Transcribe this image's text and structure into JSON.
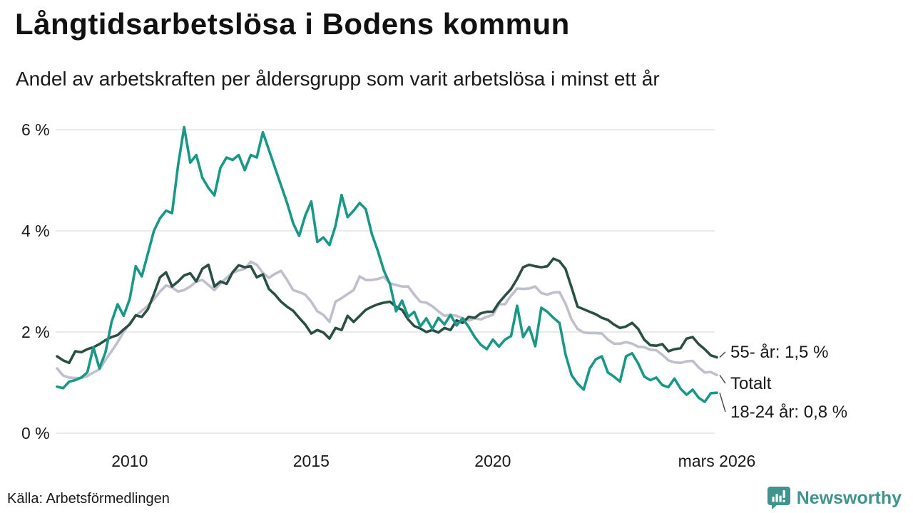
{
  "header": {
    "title": "Långtidsarbetslösa i Bodens kommun",
    "subtitle": "Andel av arbetskraften per åldersgrupp som varit arbetslösa i minst ett år"
  },
  "footer": {
    "source": "Källa: Arbetsförmedlingen",
    "brand": "Newsworthy"
  },
  "colors": {
    "accent_teal": "#1a9886",
    "dark_green": "#2c4f44",
    "total_gray": "#bfc0cb",
    "gridline": "#e4e4e4",
    "leader": "#444444",
    "text": "#1a1a1a",
    "brand_teal": "#3f958d"
  },
  "chart_data": {
    "type": "line",
    "unit": "%",
    "grid": true,
    "legend_position": "end-labels-right",
    "x_start": 2008.0,
    "x_end": 2026.17,
    "ylim": [
      0,
      6.3
    ],
    "x_ticks": [
      {
        "label": "2010",
        "year": 2010
      },
      {
        "label": "2015",
        "year": 2015
      },
      {
        "label": "2020",
        "year": 2020
      },
      {
        "label": "mars 2026",
        "year": 2026.17
      }
    ],
    "y_ticks": [
      {
        "label": "0 %",
        "value": 0
      },
      {
        "label": "2 %",
        "value": 2
      },
      {
        "label": "4 %",
        "value": 4
      },
      {
        "label": "6 %",
        "value": 6
      }
    ],
    "series": [
      {
        "name": "55- år",
        "end_label": "55- år: 1,5 %",
        "last_value": 1.5,
        "color": "#2c4f44",
        "values": [
          1.52,
          1.44,
          1.39,
          1.62,
          1.6,
          1.66,
          1.7,
          1.76,
          1.84,
          1.9,
          1.94,
          2.05,
          2.15,
          2.33,
          2.3,
          2.45,
          2.75,
          3.08,
          3.18,
          2.9,
          3.0,
          3.12,
          3.16,
          3.0,
          3.25,
          3.33,
          2.9,
          3.0,
          2.95,
          3.18,
          3.32,
          3.28,
          3.3,
          3.08,
          3.14,
          2.85,
          2.74,
          2.6,
          2.5,
          2.42,
          2.28,
          2.15,
          1.97,
          2.04,
          1.99,
          1.87,
          2.08,
          2.04,
          2.32,
          2.2,
          2.32,
          2.44,
          2.5,
          2.55,
          2.58,
          2.6,
          2.5,
          2.44,
          2.25,
          2.12,
          2.07,
          2.0,
          2.04,
          1.99,
          2.08,
          2.04,
          2.23,
          2.18,
          2.3,
          2.28,
          2.37,
          2.4,
          2.4,
          2.58,
          2.72,
          2.85,
          3.05,
          3.28,
          3.33,
          3.3,
          3.28,
          3.3,
          3.45,
          3.4,
          3.25,
          2.88,
          2.5,
          2.45,
          2.4,
          2.35,
          2.28,
          2.24,
          2.15,
          2.08,
          2.11,
          2.18,
          2.06,
          1.85,
          1.74,
          1.73,
          1.76,
          1.62,
          1.66,
          1.68,
          1.87,
          1.9,
          1.76,
          1.66,
          1.54,
          1.5
        ]
      },
      {
        "name": "Totalt",
        "end_label": "Totalt",
        "last_value": 1.15,
        "color": "#bfc0cb",
        "values": [
          1.28,
          1.14,
          1.1,
          1.09,
          1.09,
          1.13,
          1.2,
          1.26,
          1.45,
          1.62,
          1.8,
          2.0,
          2.17,
          2.32,
          2.42,
          2.52,
          2.65,
          2.8,
          2.92,
          2.88,
          2.8,
          2.83,
          2.9,
          3.0,
          3.03,
          2.93,
          2.83,
          2.96,
          3.07,
          3.17,
          3.22,
          3.25,
          3.39,
          3.33,
          3.17,
          3.07,
          3.15,
          3.21,
          3.03,
          2.83,
          2.79,
          2.74,
          2.6,
          2.41,
          2.34,
          2.2,
          2.6,
          2.67,
          2.75,
          2.83,
          3.1,
          3.03,
          3.03,
          3.05,
          3.09,
          2.96,
          2.93,
          2.9,
          2.9,
          2.74,
          2.6,
          2.58,
          2.51,
          2.41,
          2.32,
          2.34,
          2.32,
          2.27,
          2.23,
          2.27,
          2.25,
          2.3,
          2.34,
          2.55,
          2.55,
          2.72,
          2.86,
          2.85,
          2.86,
          2.9,
          2.77,
          2.74,
          2.78,
          2.79,
          2.56,
          2.25,
          2.06,
          1.99,
          1.98,
          1.98,
          1.97,
          1.85,
          1.77,
          1.77,
          1.8,
          1.77,
          1.71,
          1.7,
          1.65,
          1.64,
          1.55,
          1.44,
          1.4,
          1.39,
          1.42,
          1.43,
          1.3,
          1.2,
          1.21,
          1.15
        ]
      },
      {
        "name": "18-24 år",
        "end_label": "18-24 år: 0,8 %",
        "last_value": 0.8,
        "color": "#1a9886",
        "values": [
          0.92,
          0.89,
          1.02,
          1.05,
          1.1,
          1.2,
          1.7,
          1.28,
          1.6,
          2.2,
          2.55,
          2.32,
          2.65,
          3.3,
          3.1,
          3.55,
          4.0,
          4.25,
          4.4,
          4.35,
          5.3,
          6.05,
          5.35,
          5.5,
          5.05,
          4.85,
          4.7,
          5.25,
          5.45,
          5.4,
          5.5,
          5.2,
          5.5,
          5.45,
          5.95,
          5.6,
          5.25,
          4.9,
          4.55,
          4.15,
          3.9,
          4.3,
          4.58,
          3.78,
          3.87,
          3.72,
          4.1,
          4.71,
          4.27,
          4.4,
          4.55,
          4.43,
          3.94,
          3.6,
          3.21,
          2.95,
          2.41,
          2.62,
          2.3,
          2.4,
          2.11,
          2.27,
          2.06,
          2.28,
          2.15,
          2.34,
          2.13,
          2.27,
          2.1,
          1.9,
          1.75,
          1.66,
          1.85,
          1.71,
          1.85,
          1.92,
          2.52,
          1.9,
          2.1,
          1.72,
          2.48,
          2.4,
          2.28,
          2.18,
          1.56,
          1.15,
          0.98,
          0.86,
          1.28,
          1.46,
          1.52,
          1.2,
          1.12,
          1.02,
          1.52,
          1.58,
          1.38,
          1.12,
          1.05,
          1.1,
          0.95,
          0.91,
          1.08,
          0.88,
          0.76,
          0.86,
          0.7,
          0.62,
          0.79,
          0.8
        ]
      }
    ]
  }
}
